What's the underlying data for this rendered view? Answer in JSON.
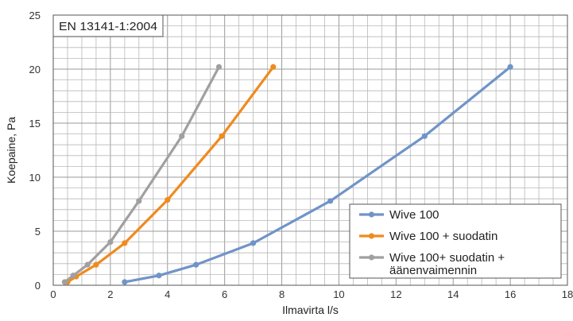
{
  "chart_data": {
    "type": "line",
    "title": "",
    "xlabel": "Ilmavirta l/s",
    "ylabel": "Koepaine, Pa",
    "xlim": [
      0,
      18
    ],
    "ylim": [
      0,
      25
    ],
    "x_ticks": [
      0,
      2,
      4,
      6,
      8,
      10,
      12,
      14,
      16,
      18
    ],
    "y_ticks": [
      0,
      5,
      10,
      15,
      20,
      25
    ],
    "minor_grid_x_step": 0.5,
    "minor_grid_y_step": 1,
    "grid": true,
    "legend_position": "bottom-right",
    "annotation": "EN 13141-1:2004",
    "series": [
      {
        "name": "Wive 100",
        "color": "#7094c8",
        "points": [
          [
            2.5,
            0.3
          ],
          [
            3.7,
            0.9
          ],
          [
            5.0,
            1.9
          ],
          [
            7.0,
            3.9
          ],
          [
            9.7,
            7.8
          ],
          [
            13.0,
            13.8
          ],
          [
            16.0,
            20.2
          ]
        ]
      },
      {
        "name": "Wive 100 + suodatin",
        "color": "#f08a1e",
        "points": [
          [
            0.5,
            0.3
          ],
          [
            0.8,
            0.8
          ],
          [
            1.5,
            1.9
          ],
          [
            2.5,
            3.9
          ],
          [
            4.0,
            7.9
          ],
          [
            5.9,
            13.8
          ],
          [
            7.7,
            20.2
          ]
        ]
      },
      {
        "name": "Wive 100+ suodatin + äänenvaimennin",
        "legend_lines": [
          "Wive 100+ suodatin +",
          "äänenvaimennin"
        ],
        "color": "#a0a0a0",
        "points": [
          [
            0.4,
            0.3
          ],
          [
            0.7,
            0.9
          ],
          [
            1.2,
            1.9
          ],
          [
            2.0,
            4.0
          ],
          [
            3.0,
            7.8
          ],
          [
            4.5,
            13.8
          ],
          [
            5.8,
            20.2
          ]
        ]
      }
    ]
  }
}
